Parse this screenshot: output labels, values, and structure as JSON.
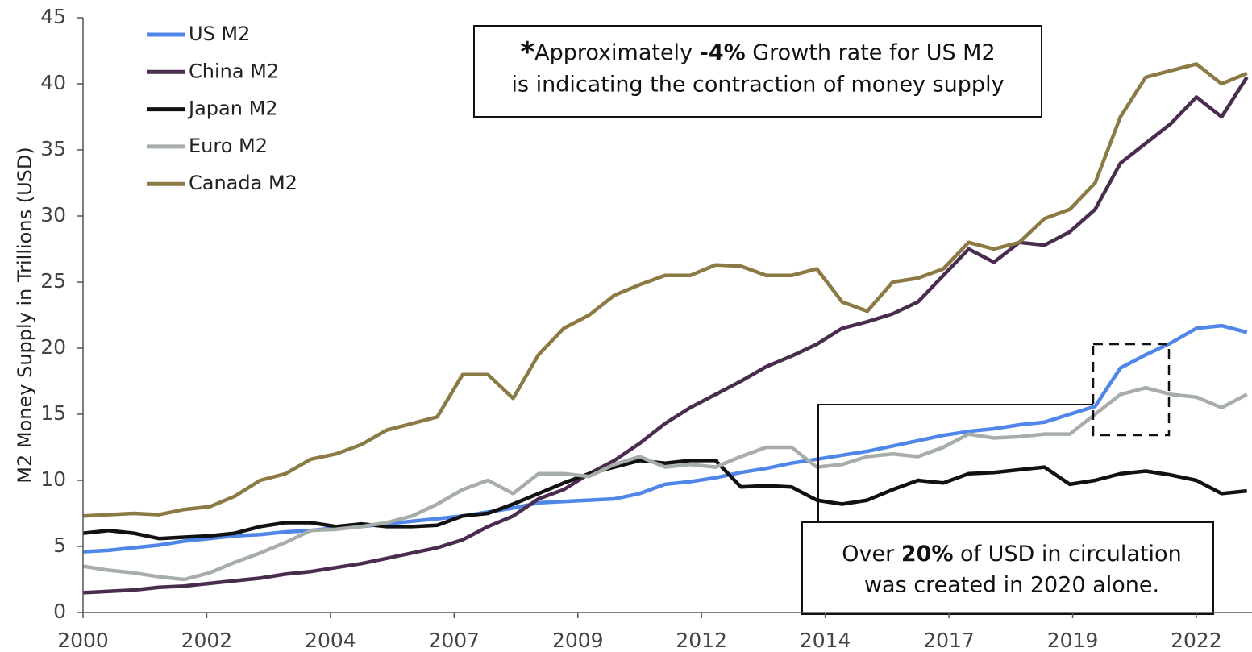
{
  "chart_data": {
    "type": "line",
    "y_label": "M2 Money Supply in Trillions (USD)",
    "x": [
      2000,
      2000.5,
      2001,
      2001.5,
      2002,
      2002.5,
      2003,
      2003.5,
      2004,
      2004.5,
      2005,
      2005.5,
      2006,
      2006.5,
      2007,
      2007.5,
      2008,
      2008.5,
      2009,
      2009.5,
      2010,
      2010.5,
      2011,
      2011.5,
      2012,
      2012.5,
      2013,
      2013.5,
      2014,
      2014.5,
      2015,
      2015.5,
      2016,
      2016.5,
      2017,
      2017.5,
      2018,
      2018.5,
      2019,
      2019.5,
      2020,
      2020.5,
      2021,
      2021.5,
      2022,
      2022.5,
      2023
    ],
    "xlim": [
      2000,
      2023.1
    ],
    "xticks": [
      2000,
      {
        "value": 2002.444,
        "label": "2002"
      },
      {
        "value": 2004.889,
        "label": "2004"
      },
      {
        "value": 2007.333,
        "label": "2007"
      },
      {
        "value": 2009.778,
        "label": "2009"
      },
      {
        "value": 2012.222,
        "label": "2012"
      },
      {
        "value": 2014.667,
        "label": "2014"
      },
      {
        "value": 2017.111,
        "label": "2017"
      },
      {
        "value": 2019.556,
        "label": "2019"
      },
      2022
    ],
    "ylim": [
      0,
      45
    ],
    "yticks": [
      0,
      5,
      10,
      15,
      20,
      25,
      30,
      35,
      40,
      45
    ],
    "legend": "top-left",
    "series": [
      {
        "name": "US M2",
        "color": "#4f86e8",
        "values": [
          4.6,
          4.7,
          4.9,
          5.1,
          5.4,
          5.6,
          5.8,
          5.9,
          6.1,
          6.2,
          6.4,
          6.5,
          6.7,
          6.9,
          7.1,
          7.3,
          7.6,
          7.9,
          8.3,
          8.4,
          8.5,
          8.6,
          9.0,
          9.7,
          9.9,
          10.2,
          10.6,
          10.9,
          11.3,
          11.6,
          11.9,
          12.2,
          12.6,
          13.0,
          13.4,
          13.7,
          13.9,
          14.2,
          14.4,
          15.0,
          15.6,
          18.5,
          19.5,
          20.4,
          21.5,
          21.7,
          21.2
        ]
      },
      {
        "name": "China M2",
        "color": "#4a2c4f",
        "values": [
          1.5,
          1.6,
          1.7,
          1.9,
          2.0,
          2.2,
          2.4,
          2.6,
          2.9,
          3.1,
          3.4,
          3.7,
          4.1,
          4.5,
          4.9,
          5.5,
          6.5,
          7.3,
          8.6,
          9.3,
          10.5,
          11.5,
          12.8,
          14.3,
          15.5,
          16.5,
          17.5,
          18.6,
          19.4,
          20.3,
          21.5,
          22.0,
          22.6,
          23.5,
          25.5,
          27.5,
          26.5,
          28.0,
          27.8,
          28.8,
          30.5,
          34.0,
          35.5,
          37.0,
          39.0,
          37.5,
          40.5
        ]
      },
      {
        "name": "Japan M2",
        "color": "#111111",
        "values": [
          6.0,
          6.2,
          6.0,
          5.6,
          5.7,
          5.8,
          6.0,
          6.5,
          6.8,
          6.8,
          6.5,
          6.7,
          6.5,
          6.5,
          6.6,
          7.3,
          7.5,
          8.2,
          9.0,
          9.8,
          10.5,
          11.0,
          11.5,
          11.3,
          11.5,
          11.5,
          9.5,
          9.6,
          9.5,
          8.5,
          8.2,
          8.5,
          9.3,
          10.0,
          9.8,
          10.5,
          10.6,
          10.8,
          11.0,
          9.7,
          10.0,
          10.5,
          10.7,
          10.4,
          10.0,
          9.0,
          9.2
        ]
      },
      {
        "name": "Euro M2",
        "color": "#a7aeaa",
        "values": [
          3.5,
          3.2,
          3.0,
          2.7,
          2.5,
          3.0,
          3.8,
          4.5,
          5.3,
          6.2,
          6.3,
          6.5,
          6.8,
          7.3,
          8.2,
          9.3,
          10.0,
          9.0,
          10.5,
          10.5,
          10.3,
          11.2,
          11.8,
          11.0,
          11.2,
          11.0,
          11.8,
          12.5,
          12.5,
          11.0,
          11.2,
          11.8,
          12.0,
          11.8,
          12.5,
          13.5,
          13.2,
          13.3,
          13.5,
          13.5,
          15.0,
          16.5,
          17.0,
          16.5,
          16.3,
          15.5,
          16.5
        ]
      },
      {
        "name": "Canada M2",
        "color": "#8c7a45",
        "values": [
          7.3,
          7.4,
          7.5,
          7.4,
          7.8,
          8.0,
          8.8,
          10.0,
          10.5,
          11.6,
          12.0,
          12.7,
          13.8,
          14.3,
          14.8,
          18.0,
          18.0,
          16.2,
          19.5,
          21.5,
          22.5,
          24.0,
          24.8,
          25.5,
          25.5,
          26.3,
          26.2,
          25.5,
          25.5,
          26.0,
          23.5,
          22.8,
          25.0,
          25.3,
          26.0,
          28.0,
          27.5,
          28.0,
          29.8,
          30.5,
          32.5,
          37.5,
          40.5,
          41.0,
          41.5,
          40.0,
          40.8
        ]
      }
    ],
    "annotations": [
      {
        "line1": [
          "*",
          "Approximately ",
          "-4%",
          " Growth rate for US M2"
        ],
        "line2": "is indicating the contraction of money supply"
      },
      {
        "line1": [
          "Over ",
          "20%",
          " of USD in circulation"
        ],
        "line2": "was created in 2020 alone."
      }
    ]
  }
}
